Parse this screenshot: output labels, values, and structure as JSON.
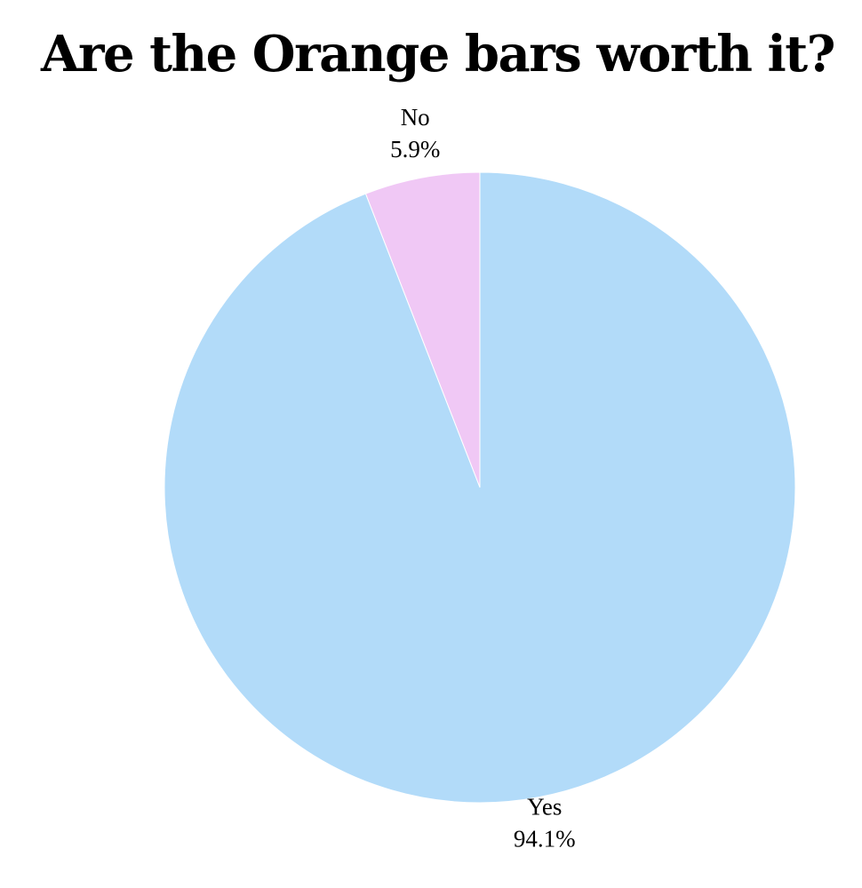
{
  "chart_data": {
    "type": "pie",
    "title": "Are the Orange bars worth it?",
    "categories": [
      "No",
      "Yes"
    ],
    "values": [
      5.9,
      94.1
    ],
    "labels": [
      "5.9%",
      "94.1%"
    ],
    "colors": [
      "#f0c8f5",
      "#b2dbf9"
    ],
    "start": "12 o'clock",
    "direction": "counter-clockwise",
    "legend": "none"
  }
}
